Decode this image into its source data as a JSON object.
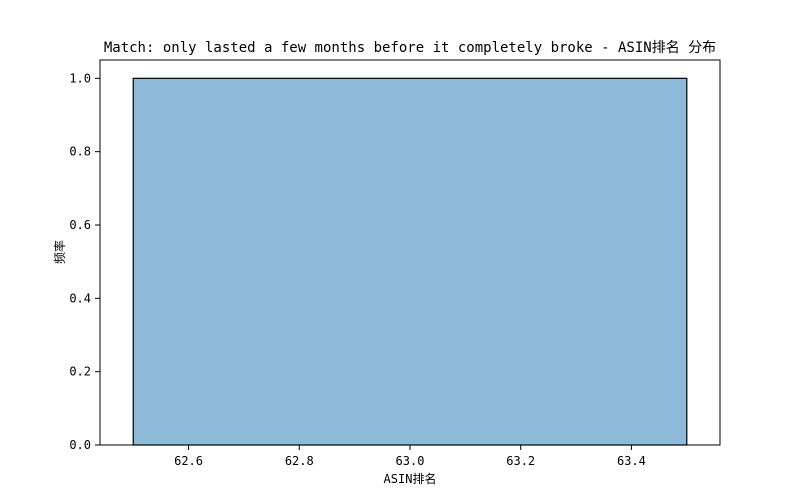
{
  "chart_data": {
    "type": "histogram",
    "title": "Match: only lasted a few months before it completely broke - ASIN排名 分布",
    "xlabel": "ASIN排名",
    "ylabel": "频率",
    "bins": [
      {
        "start": 62.5,
        "end": 63.5,
        "count": 1.0
      }
    ],
    "xlim": [
      62.44,
      63.56
    ],
    "ylim": [
      0,
      1.05
    ],
    "xticks": [
      62.6,
      62.8,
      63.0,
      63.2,
      63.4
    ],
    "xtick_labels": [
      "62.6",
      "62.8",
      "63.0",
      "63.2",
      "63.4"
    ],
    "yticks": [
      0.0,
      0.2,
      0.4,
      0.6,
      0.8,
      1.0
    ],
    "ytick_labels": [
      "0.0",
      "0.2",
      "0.4",
      "0.6",
      "0.8",
      "1.0"
    ],
    "bar_color": "#8ebad9",
    "bar_edge_color": "#000000",
    "grid": false
  }
}
